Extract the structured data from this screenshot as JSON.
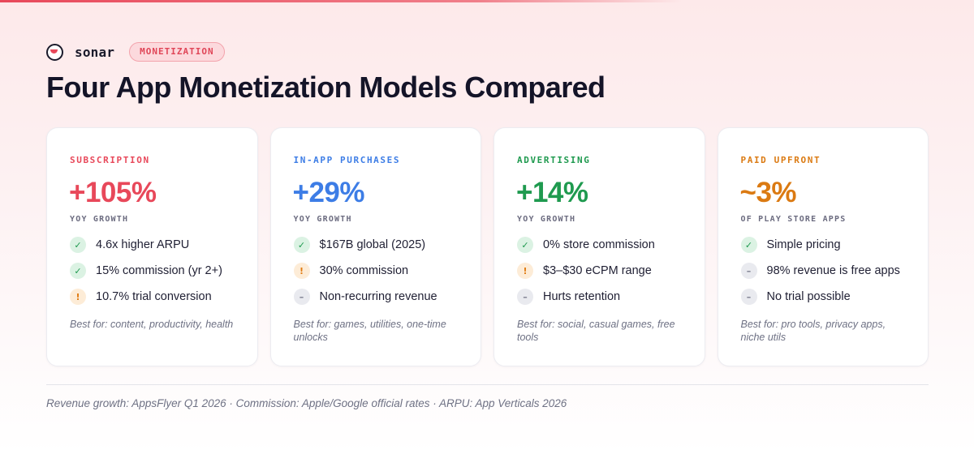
{
  "brand": {
    "name": "sonar",
    "tag": "MONETIZATION"
  },
  "title": "Four App Monetization Models Compared",
  "colors": {
    "subscription": "#e8485a",
    "in_app_purchases": "#3d7de6",
    "advertising": "#1f9a4f",
    "paid_upfront": "#db7a12"
  },
  "cards": [
    {
      "label": "SUBSCRIPTION",
      "value": "+105%",
      "sublabel": "YOY GROWTH",
      "points": [
        {
          "status": "good",
          "icon": "check-icon",
          "glyph": "✓",
          "text": "4.6x higher ARPU"
        },
        {
          "status": "good",
          "icon": "check-icon",
          "glyph": "✓",
          "text": "15% commission (yr 2+)"
        },
        {
          "status": "warn",
          "icon": "warning-icon",
          "glyph": "!",
          "text": "10.7% trial conversion"
        }
      ],
      "best_for": "Best for: content, productivity, health"
    },
    {
      "label": "IN-APP PURCHASES",
      "value": "+29%",
      "sublabel": "YOY GROWTH",
      "points": [
        {
          "status": "good",
          "icon": "check-icon",
          "glyph": "✓",
          "text": "$167B global (2025)"
        },
        {
          "status": "warn",
          "icon": "warning-icon",
          "glyph": "!",
          "text": "30% commission"
        },
        {
          "status": "neutral",
          "icon": "minus-icon",
          "glyph": "–",
          "text": "Non-recurring revenue"
        }
      ],
      "best_for": "Best for: games, utilities, one-time unlocks"
    },
    {
      "label": "ADVERTISING",
      "value": "+14%",
      "sublabel": "YOY GROWTH",
      "points": [
        {
          "status": "good",
          "icon": "check-icon",
          "glyph": "✓",
          "text": "0% store commission"
        },
        {
          "status": "warn",
          "icon": "warning-icon",
          "glyph": "!",
          "text": "$3–$30 eCPM range"
        },
        {
          "status": "neutral",
          "icon": "minus-icon",
          "glyph": "–",
          "text": "Hurts retention"
        }
      ],
      "best_for": "Best for: social, casual games, free tools"
    },
    {
      "label": "PAID UPFRONT",
      "value": "~3%",
      "sublabel": "OF PLAY STORE APPS",
      "points": [
        {
          "status": "good",
          "icon": "check-icon",
          "glyph": "✓",
          "text": "Simple pricing"
        },
        {
          "status": "neutral",
          "icon": "minus-icon",
          "glyph": "–",
          "text": "98% revenue is free apps"
        },
        {
          "status": "neutral",
          "icon": "minus-icon",
          "glyph": "–",
          "text": "No trial possible"
        }
      ],
      "best_for": "Best for: pro tools, privacy apps, niche utils"
    }
  ],
  "footnote": "Revenue growth: AppsFlyer Q1 2026 · Commission: Apple/Google official rates · ARPU: App Verticals 2026"
}
